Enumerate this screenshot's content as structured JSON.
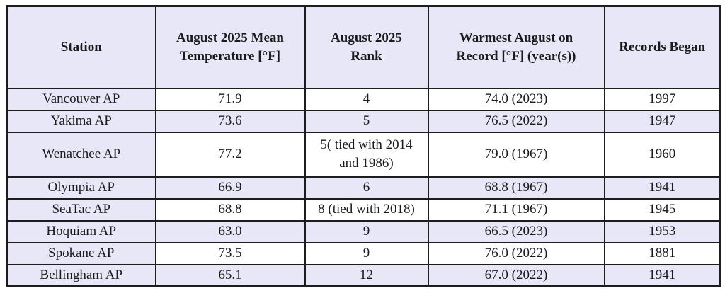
{
  "title": "August 2025 Washington airport temperature summary table",
  "colors": {
    "header_bg": "#e7e7f7",
    "stripe_bg": "#e7e7f7",
    "row_bg": "#ffffff",
    "border": "#1d1d1d",
    "text": "#1b1b1b"
  },
  "chart_data": {
    "type": "table",
    "columns": [
      "Station",
      "August 2025 Mean Temperature [°F]",
      "August 2025 Rank",
      "Warmest August on Record [°F] (year(s))",
      "Records Began"
    ],
    "rows": [
      [
        "Vancouver AP",
        "71.9",
        "4",
        "74.0 (2023)",
        "1997"
      ],
      [
        "Yakima AP",
        "73.6",
        "5",
        "76.5 (2022)",
        "1947"
      ],
      [
        "Wenatchee AP",
        "77.2",
        "5( tied with 2014 and 1986)",
        "79.0 (1967)",
        "1960"
      ],
      [
        "Olympia AP",
        "66.9",
        "6",
        "68.8 (1967)",
        "1941"
      ],
      [
        "SeaTac AP",
        "68.8",
        "8 (tied with 2018)",
        "71.1 (1967)",
        "1945"
      ],
      [
        "Hoquiam AP",
        "63.0",
        "9",
        "66.5 (2023)",
        "1953"
      ],
      [
        "Spokane AP",
        "73.5",
        "9",
        "76.0 (2022)",
        "1881"
      ],
      [
        "Bellingham AP",
        "65.1",
        "12",
        "67.0 (2022)",
        "1941"
      ]
    ]
  }
}
